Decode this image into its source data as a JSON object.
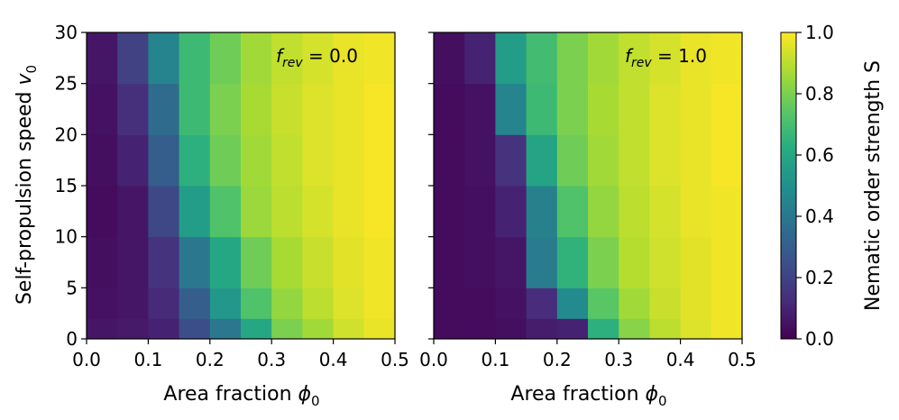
{
  "chart_data": {
    "type": "heatmap",
    "x_bins": [
      0.025,
      0.075,
      0.125,
      0.175,
      0.225,
      0.275,
      0.325,
      0.375,
      0.425,
      0.475
    ],
    "y_bins": [
      1,
      4,
      7.5,
      12.5,
      17.5,
      22.5,
      27.5
    ],
    "y_edges": [
      0,
      2,
      5,
      10,
      15,
      20,
      25,
      30
    ],
    "xlim": [
      0.0,
      0.5
    ],
    "ylim": [
      0,
      30
    ],
    "x_tick_labels": [
      "0.0",
      "0.1",
      "0.2",
      "0.3",
      "0.4",
      "0.5"
    ],
    "y_tick_labels": [
      "0",
      "5",
      "10",
      "15",
      "20",
      "25",
      "30"
    ],
    "xlabel_text": "Area fraction ",
    "xlabel_symbol": "ϕ",
    "xlabel_sub": "0",
    "ylabel_text": "Self-propulsion speed ",
    "ylabel_symbol": "v",
    "ylabel_sub": "0",
    "colormap": "viridis",
    "colorbar": {
      "label": "Nematic order strength S",
      "range": [
        0.0,
        1.0
      ],
      "tick_labels": [
        "0.0",
        "0.2",
        "0.4",
        "0.6",
        "0.8",
        "1.0"
      ]
    },
    "panels": [
      {
        "annotation_symbol": "f",
        "annotation_sub": "rev",
        "annotation_value": " = 0.0",
        "values": [
          [
            0.06,
            0.07,
            0.1,
            0.24,
            0.4,
            0.6,
            0.8,
            0.86,
            0.93,
            0.97
          ],
          [
            0.05,
            0.06,
            0.12,
            0.3,
            0.53,
            0.72,
            0.84,
            0.9,
            0.95,
            0.98
          ],
          [
            0.04,
            0.06,
            0.15,
            0.4,
            0.6,
            0.78,
            0.87,
            0.92,
            0.96,
            0.98
          ],
          [
            0.03,
            0.06,
            0.22,
            0.55,
            0.72,
            0.85,
            0.9,
            0.94,
            0.97,
            0.99
          ],
          [
            0.04,
            0.1,
            0.3,
            0.64,
            0.78,
            0.86,
            0.91,
            0.95,
            0.97,
            0.99
          ],
          [
            0.05,
            0.14,
            0.35,
            0.68,
            0.8,
            0.87,
            0.92,
            0.95,
            0.97,
            0.99
          ],
          [
            0.06,
            0.2,
            0.45,
            0.68,
            0.78,
            0.86,
            0.91,
            0.94,
            0.97,
            0.98
          ]
        ]
      },
      {
        "annotation_symbol": "f",
        "annotation_sub": "rev",
        "annotation_value": " = 1.0",
        "values": [
          [
            0.03,
            0.03,
            0.04,
            0.08,
            0.1,
            0.64,
            0.82,
            0.9,
            0.95,
            0.98
          ],
          [
            0.03,
            0.03,
            0.05,
            0.13,
            0.48,
            0.74,
            0.86,
            0.92,
            0.96,
            0.98
          ],
          [
            0.03,
            0.04,
            0.06,
            0.42,
            0.65,
            0.8,
            0.89,
            0.93,
            0.96,
            0.98
          ],
          [
            0.03,
            0.04,
            0.1,
            0.44,
            0.72,
            0.84,
            0.9,
            0.94,
            0.97,
            0.98
          ],
          [
            0.03,
            0.05,
            0.15,
            0.58,
            0.78,
            0.86,
            0.91,
            0.95,
            0.97,
            0.99
          ],
          [
            0.03,
            0.05,
            0.45,
            0.68,
            0.8,
            0.87,
            0.91,
            0.95,
            0.97,
            0.99
          ],
          [
            0.04,
            0.1,
            0.55,
            0.69,
            0.8,
            0.86,
            0.91,
            0.94,
            0.97,
            0.98
          ]
        ]
      }
    ]
  }
}
